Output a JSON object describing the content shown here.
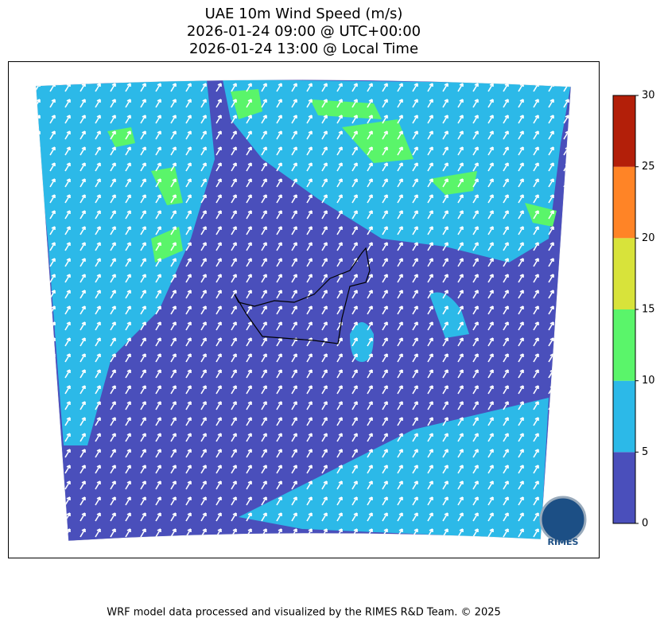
{
  "title": [
    "UAE 10m Wind Speed (m/s)",
    "2026-01-24 09:00 @ UTC+00:00",
    "2026-01-24 13:00 @ Local Time"
  ],
  "colorbar": {
    "ticks": [
      0,
      5,
      10,
      15,
      20,
      25,
      30
    ],
    "colors": [
      "#4a4fbb",
      "#2cb9e8",
      "#5af56a",
      "#d8e33a",
      "#ff8426",
      "#b31f09"
    ]
  },
  "logo": "RIMES",
  "footer": "WRF model data processed and visualized by the RIMES R&D Team. © 2025"
}
